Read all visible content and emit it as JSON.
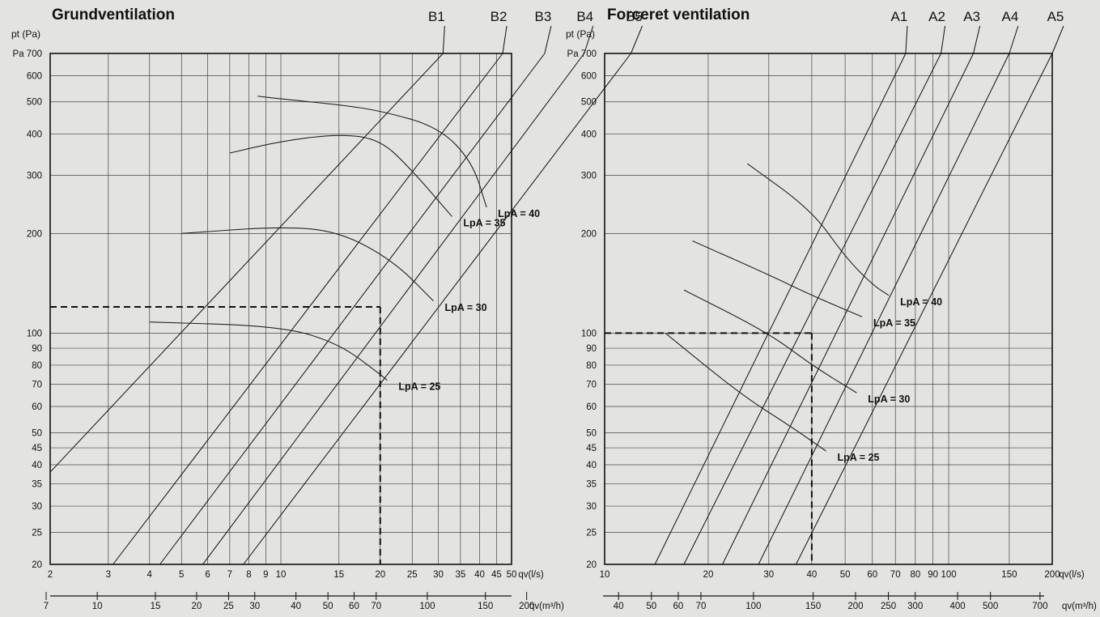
{
  "chart_data": [
    {
      "title": "Grundventilation",
      "type": "line",
      "y_axis_label": "pt (Pa)",
      "y_unit_prefix": "Pa",
      "x_label_ls": "qv(l/s)",
      "x_label_m3h": "qv(m³/h)",
      "y_scale": "log",
      "x_scale": "log",
      "ylim": [
        20,
        700
      ],
      "xlim_ls": [
        2,
        50
      ],
      "yticks": [
        20,
        25,
        30,
        35,
        40,
        45,
        50,
        60,
        70,
        80,
        90,
        100,
        200,
        300,
        400,
        500,
        600,
        700
      ],
      "xticks_ls": [
        2,
        3,
        4,
        5,
        6,
        7,
        8,
        9,
        10,
        15,
        20,
        25,
        30,
        35,
        40,
        45,
        50
      ],
      "xticks_m3h": [
        7,
        10,
        15,
        20,
        25,
        30,
        40,
        50,
        60,
        70,
        100,
        150,
        200
      ],
      "system_curves": [
        {
          "name": "B1",
          "points": [
            [
              2,
              38
            ],
            [
              31,
              700
            ]
          ]
        },
        {
          "name": "B2",
          "points": [
            [
              3.1,
              20
            ],
            [
              47,
              700
            ]
          ]
        },
        {
          "name": "B3",
          "points": [
            [
              4.3,
              20
            ],
            [
              63,
              700
            ]
          ]
        },
        {
          "name": "B4",
          "points": [
            [
              5.8,
              20
            ],
            [
              83,
              700
            ]
          ]
        },
        {
          "name": "B5",
          "points": [
            [
              7.7,
              20
            ],
            [
              115,
              700
            ]
          ]
        }
      ],
      "series": [
        {
          "name": "LpA = 25",
          "points": [
            [
              4,
              108
            ],
            [
              10,
              105
            ],
            [
              15,
              93
            ],
            [
              20,
              75
            ],
            [
              21,
              72
            ]
          ]
        },
        {
          "name": "LpA = 30",
          "points": [
            [
              5,
              200
            ],
            [
              10,
              210
            ],
            [
              15,
              203
            ],
            [
              22,
              165
            ],
            [
              29,
              125
            ]
          ]
        },
        {
          "name": "LpA = 35",
          "points": [
            [
              7,
              350
            ],
            [
              10,
              380
            ],
            [
              15,
              400
            ],
            [
              20,
              385
            ],
            [
              25,
              310
            ],
            [
              33,
              225
            ]
          ]
        },
        {
          "name": "LpA = 40",
          "points": [
            [
              8.5,
              520
            ],
            [
              10,
              510
            ],
            [
              15,
              490
            ],
            [
              20,
              470
            ],
            [
              30,
              420
            ],
            [
              38,
              330
            ],
            [
              42,
              240
            ]
          ]
        }
      ],
      "curve_labels": [
        "LpA = 25",
        "LpA = 30",
        "LpA = 35",
        "LpA = 40"
      ],
      "operating_point": {
        "x_ls": 20,
        "y_pa": 120
      }
    },
    {
      "title": "Forceret ventilation",
      "type": "line",
      "y_axis_label": "pt (Pa)",
      "y_unit_prefix": "Pa",
      "x_label_ls": "qv(l/s)",
      "x_label_m3h": "qv(m³/h)",
      "y_scale": "log",
      "x_scale": "log",
      "ylim": [
        20,
        700
      ],
      "xlim_ls": [
        10,
        200
      ],
      "yticks": [
        20,
        25,
        30,
        35,
        40,
        45,
        50,
        60,
        70,
        80,
        90,
        100,
        200,
        300,
        400,
        500,
        600,
        700
      ],
      "xticks_ls": [
        10,
        20,
        30,
        40,
        50,
        60,
        70,
        80,
        90,
        100,
        150,
        200
      ],
      "xticks_m3h": [
        40,
        50,
        60,
        70,
        100,
        150,
        200,
        250,
        300,
        400,
        500,
        700
      ],
      "system_curves": [
        {
          "name": "A1",
          "points": [
            [
              14,
              20
            ],
            [
              75,
              700
            ]
          ]
        },
        {
          "name": "A2",
          "points": [
            [
              17,
              20
            ],
            [
              95,
              700
            ]
          ]
        },
        {
          "name": "A3",
          "points": [
            [
              22,
              20
            ],
            [
              118,
              700
            ]
          ]
        },
        {
          "name": "A4",
          "points": [
            [
              28,
              20
            ],
            [
              150,
              700
            ]
          ]
        },
        {
          "name": "A5",
          "points": [
            [
              36,
              20
            ],
            [
              200,
              700
            ]
          ]
        }
      ],
      "series": [
        {
          "name": "LpA = 25",
          "points": [
            [
              15,
              100
            ],
            [
              25,
              65
            ],
            [
              35,
              52
            ],
            [
              44,
              44
            ]
          ]
        },
        {
          "name": "LpA = 30",
          "points": [
            [
              17,
              135
            ],
            [
              30,
              100
            ],
            [
              40,
              80
            ],
            [
              54,
              66
            ]
          ]
        },
        {
          "name": "LpA = 35",
          "points": [
            [
              18,
              190
            ],
            [
              30,
              150
            ],
            [
              40,
              130
            ],
            [
              56,
              112
            ]
          ]
        },
        {
          "name": "LpA = 40",
          "points": [
            [
              26,
              325
            ],
            [
              40,
              235
            ],
            [
              50,
              170
            ],
            [
              60,
              140
            ],
            [
              67,
              130
            ]
          ]
        }
      ],
      "curve_labels": [
        "LpA = 25",
        "LpA = 30",
        "LpA = 35",
        "LpA = 40"
      ],
      "operating_point": {
        "x_ls": 40,
        "y_pa": 100
      }
    }
  ]
}
